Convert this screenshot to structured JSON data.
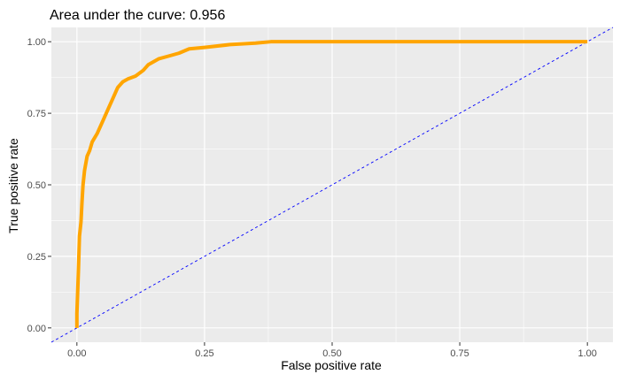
{
  "chart_data": {
    "type": "line",
    "title": "Area under the curve: 0.956",
    "xlabel": "False positive rate",
    "ylabel": "True positive rate",
    "xlim": [
      -0.05,
      1.05
    ],
    "ylim": [
      -0.05,
      1.05
    ],
    "x_ticks": [
      0.0,
      0.25,
      0.5,
      0.75,
      1.0
    ],
    "y_ticks": [
      0.0,
      0.25,
      0.5,
      0.75,
      1.0
    ],
    "x_tick_labels": [
      "0.00",
      "0.25",
      "0.50",
      "0.75",
      "1.00"
    ],
    "y_tick_labels": [
      "0.00",
      "0.25",
      "0.50",
      "0.75",
      "1.00"
    ],
    "grid": true,
    "series": [
      {
        "line_color": "#FFA500",
        "x": [
          0.0,
          0.0,
          0.003,
          0.005,
          0.008,
          0.01,
          0.012,
          0.015,
          0.02,
          0.025,
          0.03,
          0.04,
          0.05,
          0.06,
          0.07,
          0.075,
          0.08,
          0.09,
          0.1,
          0.115,
          0.13,
          0.14,
          0.15,
          0.16,
          0.18,
          0.2,
          0.22,
          0.25,
          0.3,
          0.35,
          0.38,
          0.5,
          0.75,
          1.0
        ],
        "y": [
          0.0,
          0.05,
          0.2,
          0.32,
          0.37,
          0.44,
          0.5,
          0.55,
          0.6,
          0.62,
          0.65,
          0.68,
          0.72,
          0.76,
          0.8,
          0.82,
          0.84,
          0.86,
          0.87,
          0.88,
          0.9,
          0.92,
          0.93,
          0.94,
          0.95,
          0.96,
          0.975,
          0.98,
          0.99,
          0.995,
          1.0,
          1.0,
          1.0,
          1.0
        ]
      },
      {
        "line_color": "#0000FF",
        "line_style": "dashed",
        "x": [
          -0.05,
          1.05
        ],
        "y": [
          -0.05,
          1.05
        ]
      }
    ]
  }
}
